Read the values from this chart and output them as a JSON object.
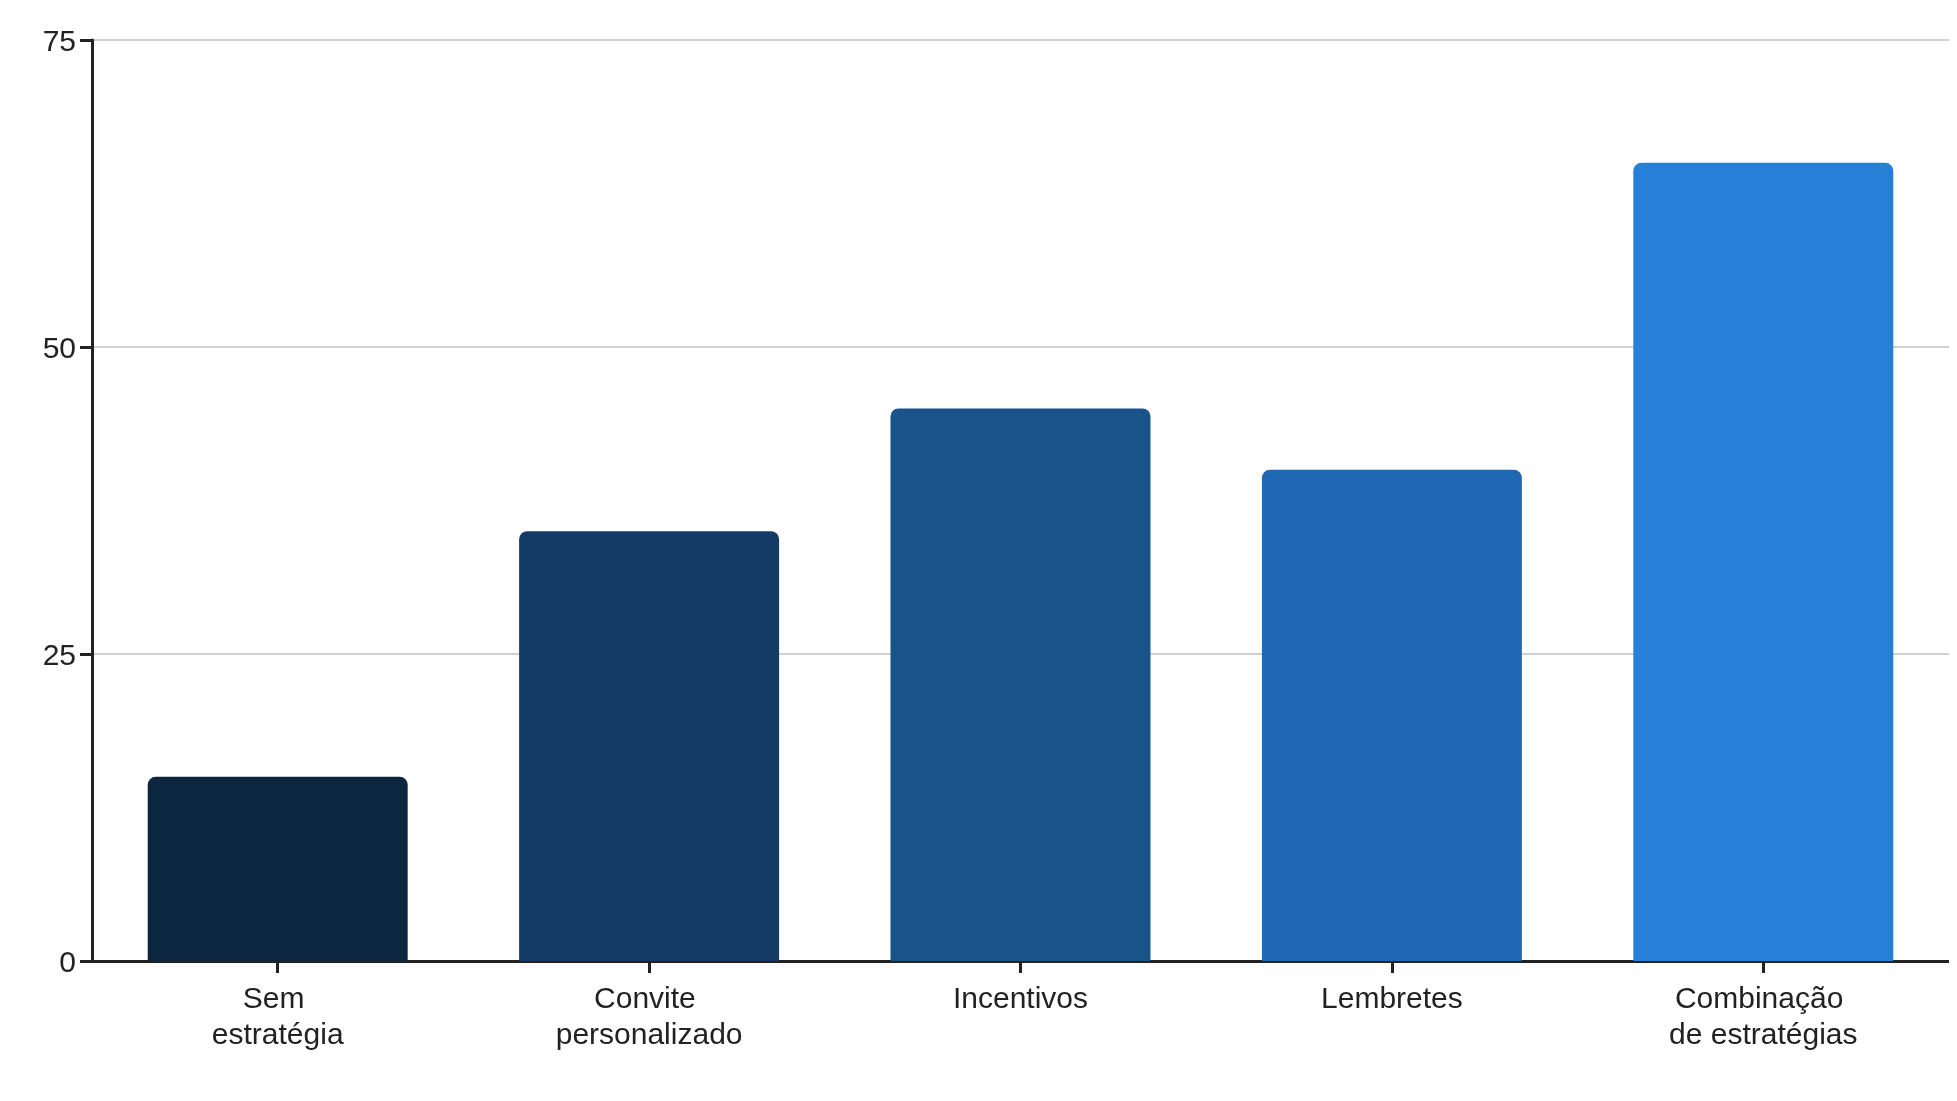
{
  "chart_data": {
    "type": "bar",
    "categories": [
      "Sem estratégia",
      "Convite personalizado",
      "Incentivos",
      "Lembretes",
      "Combinação de estratégias"
    ],
    "values": [
      15,
      35,
      45,
      40,
      65
    ],
    "colors": [
      "#0d2640",
      "#143b66",
      "#1a538a",
      "#2068b4",
      "#277fd8"
    ],
    "ylim": [
      0,
      75
    ],
    "yticks": [
      0,
      25,
      50,
      75
    ],
    "grid": "y"
  }
}
